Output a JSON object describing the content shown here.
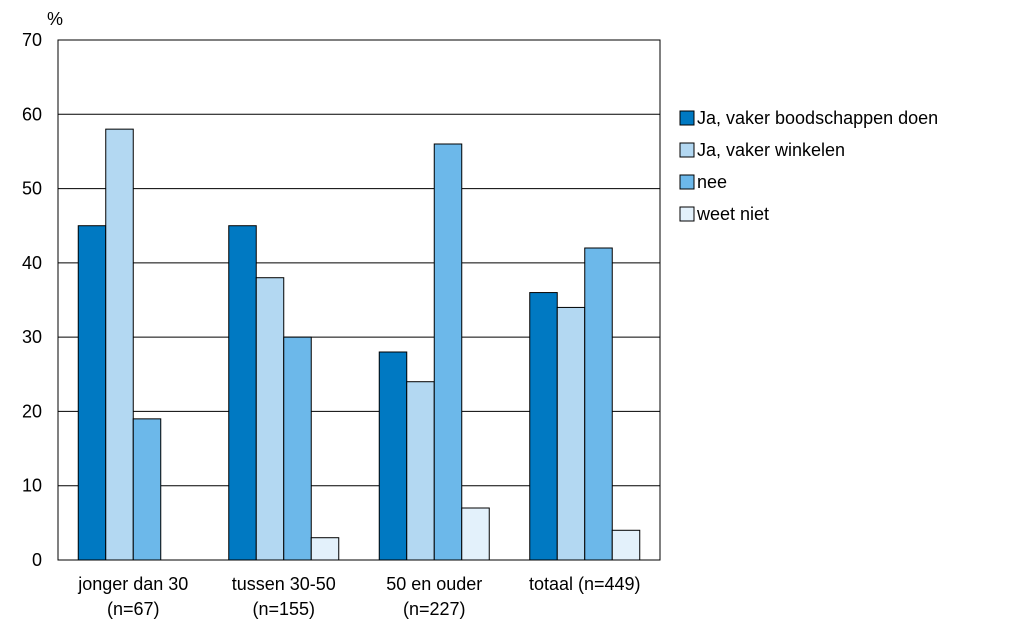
{
  "chart_data": {
    "type": "bar",
    "y_unit_label": "%",
    "ylim": [
      0,
      70
    ],
    "yticks": [
      0,
      10,
      20,
      30,
      40,
      50,
      60,
      70
    ],
    "grid": true,
    "legend_position": "right",
    "categories": [
      [
        "jonger dan 30",
        "(n=67)"
      ],
      [
        "tussen 30-50",
        "(n=155)"
      ],
      [
        "50 en ouder",
        "(n=227)"
      ],
      [
        "totaal (n=449)",
        ""
      ]
    ],
    "series": [
      {
        "name": "Ja, vaker boodschappen doen",
        "color": "#0079c2",
        "values": [
          45,
          45,
          28,
          36
        ]
      },
      {
        "name": "Ja, vaker winkelen",
        "color": "#b3d8f2",
        "values": [
          58,
          38,
          24,
          34
        ]
      },
      {
        "name": "nee",
        "color": "#6cb8ea",
        "values": [
          19,
          30,
          56,
          42
        ]
      },
      {
        "name": "weet niet",
        "color": "#e3f1fb",
        "values": [
          null,
          3,
          7,
          4
        ]
      }
    ]
  }
}
